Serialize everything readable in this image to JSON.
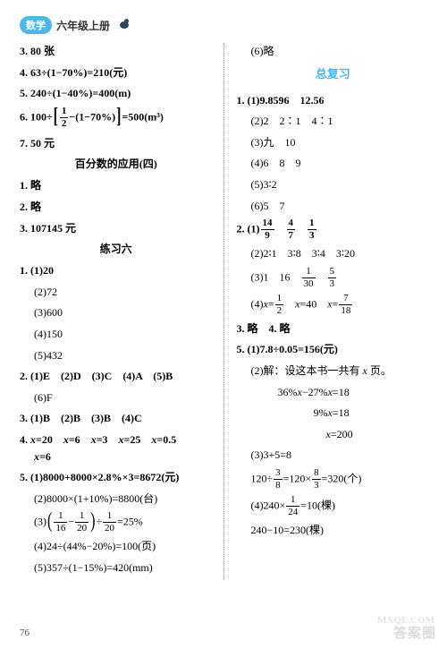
{
  "header": {
    "badge": "数学",
    "grade": "六年级上册"
  },
  "left": [
    {
      "t": "text",
      "b": true,
      "v": "3. 80 张"
    },
    {
      "t": "text",
      "b": true,
      "v": "4. 63÷(1−70%)=210(元)"
    },
    {
      "t": "text",
      "b": true,
      "v": "5. 240÷(1−40%)=400(m)"
    },
    {
      "t": "frac1",
      "b": true
    },
    {
      "t": "text",
      "b": true,
      "v": "7. 50 元"
    },
    {
      "t": "sect",
      "v": "百分数的应用(四)"
    },
    {
      "t": "text",
      "b": true,
      "v": "1. 略"
    },
    {
      "t": "text",
      "b": true,
      "v": "2. 略"
    },
    {
      "t": "text",
      "b": true,
      "v": "3. 107145 元"
    },
    {
      "t": "sect",
      "v": "练习六"
    },
    {
      "t": "text",
      "b": true,
      "v": "1. (1)20"
    },
    {
      "t": "sub",
      "v": "(2)72"
    },
    {
      "t": "sub",
      "v": "(3)600"
    },
    {
      "t": "sub",
      "v": "(4)150"
    },
    {
      "t": "sub",
      "v": "(5)432"
    },
    {
      "t": "text",
      "b": true,
      "v": "2. (1)E　(2)D　(3)C　(4)A　(5)B"
    },
    {
      "t": "sub",
      "v": "(6)F"
    },
    {
      "t": "text",
      "b": true,
      "v": "3. (1)B　(2)B　(3)B　(4)C"
    },
    {
      "t": "q4"
    },
    {
      "t": "text",
      "b": true,
      "v": "5. (1)8000+8000×2.8%×3=8672(元)"
    },
    {
      "t": "sub",
      "v": "(2)8000×(1+10%)=8800(台)"
    },
    {
      "t": "q5_3"
    },
    {
      "t": "sub",
      "v": "(4)24÷(44%−20%)=100(页)"
    },
    {
      "t": "sub",
      "v": "(5)357÷(1−15%)=420(mm)"
    }
  ],
  "right": [
    {
      "t": "sub",
      "v": "(6)略"
    },
    {
      "t": "sectblue",
      "v": "总复习"
    },
    {
      "t": "text",
      "b": true,
      "v": "1. (1)9.8596　12.56"
    },
    {
      "t": "sub",
      "v": "(2)2　2∶1　4∶1"
    },
    {
      "t": "sub",
      "v": "(3)九　10"
    },
    {
      "t": "sub",
      "v": "(4)6　8　9"
    },
    {
      "t": "sub",
      "v": "(5)3∶2"
    },
    {
      "t": "sub",
      "v": "(6)5　7"
    },
    {
      "t": "r2_1"
    },
    {
      "t": "sub",
      "v": "(2)2∶1　3∶8　3∶4　3∶20"
    },
    {
      "t": "r2_3"
    },
    {
      "t": "r2_4"
    },
    {
      "t": "text",
      "b": true,
      "v": "3. 略　4. 略"
    },
    {
      "t": "text",
      "b": true,
      "v": "5. (1)7.8÷0.05=156(元)"
    },
    {
      "t": "r5_2a"
    },
    {
      "t": "r5_2b"
    },
    {
      "t": "r5_2c"
    },
    {
      "t": "r5_2d"
    },
    {
      "t": "sub",
      "v": "(3)3+5=8"
    },
    {
      "t": "r5_3b"
    },
    {
      "t": "r5_4"
    },
    {
      "t": "sub",
      "v": "240−10=230(棵)"
    }
  ],
  "page": "76",
  "wm1": "答案圈",
  "wm2": "MXQE.COM"
}
